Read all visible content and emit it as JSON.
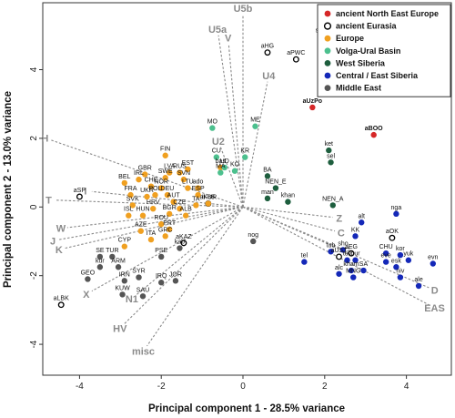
{
  "chart_data": {
    "type": "scatter",
    "xlabel": "Principal component 1 - 28.5% variance",
    "ylabel": "Principal component 2 - 13.0% variance",
    "xlim": [
      -4.9,
      5.1
    ],
    "ylim": [
      -4.9,
      5.95
    ],
    "xticks": [
      -4,
      -2,
      0,
      2,
      4
    ],
    "yticks": [
      -4,
      -2,
      0,
      2,
      4
    ],
    "grid": false,
    "legend_position": "top-right",
    "groups": [
      {
        "key": "ane",
        "name": "ancient North East Europe",
        "color": "#d62728",
        "hollow": false
      },
      {
        "key": "aeu",
        "name": "ancient Eurasia",
        "color": "#000000",
        "hollow": true
      },
      {
        "key": "eur",
        "name": "Europe",
        "color": "#f0a020",
        "hollow": false
      },
      {
        "key": "vub",
        "name": "Volga-Ural Basin",
        "color": "#4cc08e",
        "hollow": false
      },
      {
        "key": "wsi",
        "name": "West Siberia",
        "color": "#1e5e3e",
        "hollow": false
      },
      {
        "key": "ces",
        "name": "Central / East Siberia",
        "color": "#1428b8",
        "hollow": false
      },
      {
        "key": "mde",
        "name": "Middle East",
        "color": "#555555",
        "hollow": false
      }
    ],
    "points": [
      {
        "label": "aUzPo",
        "x": 1.7,
        "y": 2.9,
        "group": "ane",
        "bold": true
      },
      {
        "label": "aBOO",
        "x": 3.2,
        "y": 2.1,
        "group": "ane",
        "bold": true
      },
      {
        "label": "aHG",
        "x": 0.6,
        "y": 4.5,
        "group": "aeu"
      },
      {
        "label": "aPWC",
        "x": 1.3,
        "y": 4.3,
        "group": "aeu"
      },
      {
        "label": "aSP",
        "x": -4.0,
        "y": 0.3,
        "group": "aeu"
      },
      {
        "label": "aLBK",
        "x": -4.45,
        "y": -2.85,
        "group": "aeu"
      },
      {
        "label": "aKAZ",
        "x": -1.45,
        "y": -1.05,
        "group": "aeu"
      },
      {
        "label": "aKUR",
        "x": -0.85,
        "y": 0.1,
        "group": "aeu"
      },
      {
        "label": "aOK",
        "x": 3.65,
        "y": -0.9,
        "group": "aeu"
      },
      {
        "label": "aUST",
        "x": 2.35,
        "y": -1.45,
        "group": "aeu"
      },
      {
        "label": "aEG",
        "x": 2.65,
        "y": -1.35,
        "group": "aeu"
      },
      {
        "label": "saa",
        "x": 1.9,
        "y": 4.95,
        "group": "eur"
      },
      {
        "label": "FIN",
        "x": -1.9,
        "y": 1.5,
        "group": "eur"
      },
      {
        "label": "LVA",
        "x": -1.8,
        "y": 1.0,
        "group": "eur"
      },
      {
        "label": "EST",
        "x": -1.35,
        "y": 1.1,
        "group": "eur"
      },
      {
        "label": "RUS",
        "x": -1.55,
        "y": 1.0,
        "group": "eur"
      },
      {
        "label": "GBR",
        "x": -2.4,
        "y": 0.95,
        "group": "eur"
      },
      {
        "label": "IRL",
        "x": -2.55,
        "y": 0.8,
        "group": "eur"
      },
      {
        "label": "SWE",
        "x": -1.9,
        "y": 0.85,
        "group": "eur"
      },
      {
        "label": "SVN",
        "x": -1.45,
        "y": 0.8,
        "group": "eur"
      },
      {
        "label": "NOR",
        "x": -2.0,
        "y": 0.55,
        "group": "eur"
      },
      {
        "label": "LTU",
        "x": -1.35,
        "y": 0.55,
        "group": "eur"
      },
      {
        "label": "BEL",
        "x": -2.9,
        "y": 0.7,
        "group": "eur"
      },
      {
        "label": "CHE",
        "x": -2.25,
        "y": 0.6,
        "group": "eur"
      },
      {
        "label": "DEU",
        "x": -1.85,
        "y": 0.35,
        "group": "eur"
      },
      {
        "label": "FRA",
        "x": -2.75,
        "y": 0.35,
        "group": "eur"
      },
      {
        "label": "UKR",
        "x": -2.35,
        "y": 0.3,
        "group": "eur"
      },
      {
        "label": "POL",
        "x": -2.15,
        "y": 0.35,
        "group": "eur"
      },
      {
        "label": "AUT",
        "x": -1.7,
        "y": 0.15,
        "group": "eur"
      },
      {
        "label": "ESP",
        "x": -1.1,
        "y": 0.35,
        "group": "eur"
      },
      {
        "label": "SVK",
        "x": -2.7,
        "y": 0.05,
        "group": "eur"
      },
      {
        "label": "HRV",
        "x": -2.2,
        "y": -0.05,
        "group": "eur"
      },
      {
        "label": "CZE",
        "x": -1.55,
        "y": -0.05,
        "group": "eur"
      },
      {
        "label": "BGR",
        "x": -1.8,
        "y": -0.2,
        "group": "eur"
      },
      {
        "label": "ISL",
        "x": -2.8,
        "y": -0.25,
        "group": "eur"
      },
      {
        "label": "HUN",
        "x": -2.45,
        "y": -0.25,
        "group": "eur"
      },
      {
        "label": "ALB",
        "x": -1.4,
        "y": -0.25,
        "group": "eur"
      },
      {
        "label": "ROU",
        "x": -2.0,
        "y": -0.5,
        "group": "eur"
      },
      {
        "label": "PRT",
        "x": -1.8,
        "y": -0.65,
        "group": "eur"
      },
      {
        "label": "AZE",
        "x": -2.5,
        "y": -0.7,
        "group": "eur"
      },
      {
        "label": "GRC",
        "x": -1.9,
        "y": -0.85,
        "group": "eur"
      },
      {
        "label": "ITA",
        "x": -2.25,
        "y": -0.95,
        "group": "eur"
      },
      {
        "label": "TA",
        "x": -1.15,
        "y": 0.05,
        "group": "eur"
      },
      {
        "label": "CYP",
        "x": -2.9,
        "y": -1.15,
        "group": "eur"
      },
      {
        "label": "bas",
        "x": -0.55,
        "y": 1.15,
        "group": "eur"
      },
      {
        "label": "ado",
        "x": -1.1,
        "y": 0.55,
        "group": "eur"
      },
      {
        "label": "II-88",
        "x": -0.85,
        "y": 0.1,
        "group": "eur"
      },
      {
        "label": "MO",
        "x": -0.75,
        "y": 2.3,
        "group": "vub"
      },
      {
        "label": "ME",
        "x": 0.3,
        "y": 2.35,
        "group": "vub"
      },
      {
        "label": "CU",
        "x": -0.65,
        "y": 1.45,
        "group": "vub"
      },
      {
        "label": "UD",
        "x": -0.45,
        "y": 1.15,
        "group": "vub"
      },
      {
        "label": "KO",
        "x": -0.2,
        "y": 1.05,
        "group": "vub"
      },
      {
        "label": "MA",
        "x": -0.55,
        "y": 1.0,
        "group": "vub"
      },
      {
        "label": "KR",
        "x": 0.05,
        "y": 1.45,
        "group": "vub"
      },
      {
        "label": "ket",
        "x": 2.1,
        "y": 1.65,
        "group": "wsi"
      },
      {
        "label": "sel",
        "x": 2.15,
        "y": 1.3,
        "group": "wsi"
      },
      {
        "label": "BA",
        "x": 0.6,
        "y": 0.9,
        "group": "wsi"
      },
      {
        "label": "NEN_E",
        "x": 0.8,
        "y": 0.55,
        "group": "wsi"
      },
      {
        "label": "man",
        "x": 0.6,
        "y": 0.25,
        "group": "wsi"
      },
      {
        "label": "khan",
        "x": 1.1,
        "y": 0.15,
        "group": "wsi"
      },
      {
        "label": "NEN_A",
        "x": 2.2,
        "y": 0.05,
        "group": "wsi"
      },
      {
        "label": "nga",
        "x": 3.75,
        "y": -0.2,
        "group": "ces"
      },
      {
        "label": "alt",
        "x": 2.9,
        "y": -0.45,
        "group": "ces"
      },
      {
        "label": "KK",
        "x": 2.75,
        "y": -0.85,
        "group": "ces"
      },
      {
        "label": "tub",
        "x": 2.15,
        "y": -1.3,
        "group": "ces"
      },
      {
        "label": "sho",
        "x": 2.45,
        "y": -1.25,
        "group": "ces"
      },
      {
        "label": "tuv",
        "x": 2.55,
        "y": -1.55,
        "group": "ces"
      },
      {
        "label": "bur",
        "x": 2.75,
        "y": -1.55,
        "group": "ces"
      },
      {
        "label": "CHU",
        "x": 3.5,
        "y": -1.35,
        "group": "ces"
      },
      {
        "label": "kor",
        "x": 3.85,
        "y": -1.4,
        "group": "ces"
      },
      {
        "label": "eve",
        "x": 3.5,
        "y": -1.6,
        "group": "ces"
      },
      {
        "label": "yuk",
        "x": 4.05,
        "y": -1.55,
        "group": "ces"
      },
      {
        "label": "evn",
        "x": 4.65,
        "y": -1.65,
        "group": "ces"
      },
      {
        "label": "esk",
        "x": 3.75,
        "y": -1.75,
        "group": "ces"
      },
      {
        "label": "kham",
        "x": 2.65,
        "y": -1.85,
        "group": "ces"
      },
      {
        "label": "SA",
        "x": 2.95,
        "y": -1.85,
        "group": "ces"
      },
      {
        "label": "niv",
        "x": 3.85,
        "y": -2.05,
        "group": "ces"
      },
      {
        "label": "MNG",
        "x": 2.7,
        "y": -2.05,
        "group": "ces"
      },
      {
        "label": "ale",
        "x": 4.3,
        "y": -2.3,
        "group": "ces"
      },
      {
        "label": "tel",
        "x": 1.5,
        "y": -1.6,
        "group": "ces"
      },
      {
        "label": "alc",
        "x": 2.35,
        "y": -1.95,
        "group": "ces"
      },
      {
        "label": "nog",
        "x": 0.25,
        "y": -1.0,
        "group": "mde"
      },
      {
        "label": "SE",
        "x": -3.5,
        "y": -1.45,
        "group": "mde"
      },
      {
        "label": "TUR",
        "x": -3.2,
        "y": -1.45,
        "group": "mde"
      },
      {
        "label": "kur",
        "x": -3.5,
        "y": -1.75,
        "group": "mde"
      },
      {
        "label": "ARM",
        "x": -3.05,
        "y": -1.75,
        "group": "mde"
      },
      {
        "label": "PSE",
        "x": -2.0,
        "y": -1.45,
        "group": "mde"
      },
      {
        "label": "kab",
        "x": -1.55,
        "y": -1.2,
        "group": "mde"
      },
      {
        "label": "GEO",
        "x": -3.8,
        "y": -2.1,
        "group": "mde"
      },
      {
        "label": "IRN",
        "x": -2.9,
        "y": -2.15,
        "group": "mde"
      },
      {
        "label": "SYR",
        "x": -2.55,
        "y": -2.05,
        "group": "mde"
      },
      {
        "label": "IRQ",
        "x": -2.0,
        "y": -2.2,
        "group": "mde"
      },
      {
        "label": "JOR",
        "x": -1.65,
        "y": -2.15,
        "group": "mde"
      },
      {
        "label": "KUW",
        "x": -2.95,
        "y": -2.55,
        "group": "mde"
      },
      {
        "label": "SAU",
        "x": -2.45,
        "y": -2.6,
        "group": "mde"
      }
    ],
    "vectors": [
      {
        "label": "U5b",
        "x": 0.0,
        "y": 5.6
      },
      {
        "label": "U5a",
        "x": -0.6,
        "y": 5.0
      },
      {
        "label": "V",
        "x": -0.35,
        "y": 4.75
      },
      {
        "label": "U4",
        "x": 0.6,
        "y": 3.65
      },
      {
        "label": "U2",
        "x": -0.55,
        "y": 1.75
      },
      {
        "label": "H",
        "x": -4.7,
        "y": 1.95
      },
      {
        "label": "T",
        "x": -4.6,
        "y": 0.2
      },
      {
        "label": "I",
        "x": -3.7,
        "y": 0.45
      },
      {
        "label": "W",
        "x": -4.3,
        "y": -0.6
      },
      {
        "label": "J",
        "x": -4.5,
        "y": -0.95
      },
      {
        "label": "K",
        "x": -4.35,
        "y": -1.2
      },
      {
        "label": "X",
        "x": -3.7,
        "y": -2.45
      },
      {
        "label": "N1",
        "x": -2.6,
        "y": -2.55
      },
      {
        "label": "HV",
        "x": -2.9,
        "y": -3.4
      },
      {
        "label": "misc",
        "x": -2.35,
        "y": -4.05
      },
      {
        "label": "Z",
        "x": 2.2,
        "y": -0.3
      },
      {
        "label": "C",
        "x": 2.25,
        "y": -0.7
      },
      {
        "label": "G",
        "x": 2.4,
        "y": -1.2
      },
      {
        "label": "D",
        "x": 4.55,
        "y": -2.35
      },
      {
        "label": "EAS",
        "x": 4.55,
        "y": -2.85
      }
    ]
  }
}
